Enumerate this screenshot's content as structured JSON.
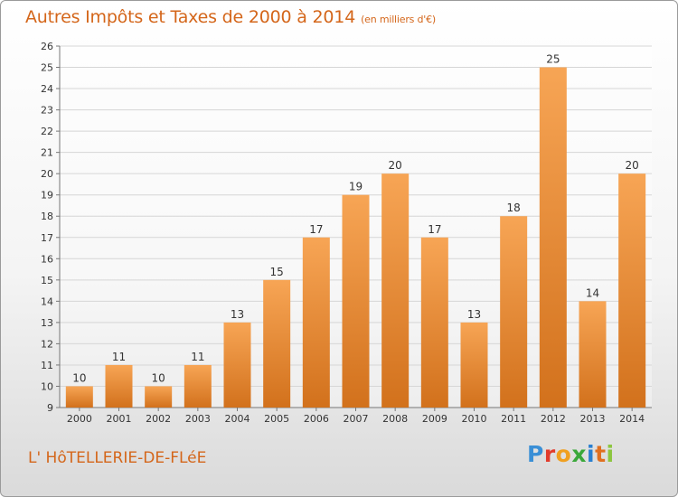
{
  "header": {
    "title": "Autres Impôts et Taxes de 2000 à 2014",
    "subtitle": "(en milliers d'€)"
  },
  "footer": {
    "commune": "L' HôTELLERIE-DE-FLéE",
    "logo_letters": [
      "P",
      "r",
      "o",
      "x",
      "i",
      "t",
      "i"
    ],
    "logo_colors": [
      "#3a8fd6",
      "#e23b2b",
      "#f0a020",
      "#3aa83a",
      "#2a7fd0",
      "#e07020",
      "#8cc63f"
    ]
  },
  "colors": {
    "bar_light": "#f7a555",
    "bar_dark": "#d2711c",
    "title": "#d4661a"
  },
  "chart_data": {
    "type": "bar",
    "categories": [
      "2000",
      "2001",
      "2002",
      "2003",
      "2004",
      "2005",
      "2006",
      "2007",
      "2008",
      "2009",
      "2010",
      "2011",
      "2012",
      "2013",
      "2014"
    ],
    "values": [
      10,
      11,
      10,
      11,
      13,
      15,
      17,
      19,
      20,
      17,
      13,
      18,
      25,
      14,
      20
    ],
    "data_labels": [
      "10",
      "11",
      "10",
      "11",
      "13",
      "15",
      "17",
      "19",
      "20",
      "17",
      "13",
      "18",
      "25",
      "14",
      "20"
    ],
    "ylim": [
      9,
      26
    ],
    "yticks": [
      9,
      10,
      11,
      12,
      13,
      14,
      15,
      16,
      17,
      18,
      19,
      20,
      21,
      22,
      23,
      24,
      25,
      26
    ],
    "ytick_labels": [
      "9",
      "10",
      "11",
      "12",
      "13",
      "14",
      "15",
      "16",
      "17",
      "18",
      "19",
      "20",
      "21",
      "22",
      "23",
      "24",
      "25",
      "26"
    ],
    "grid": true,
    "legend": "none"
  }
}
